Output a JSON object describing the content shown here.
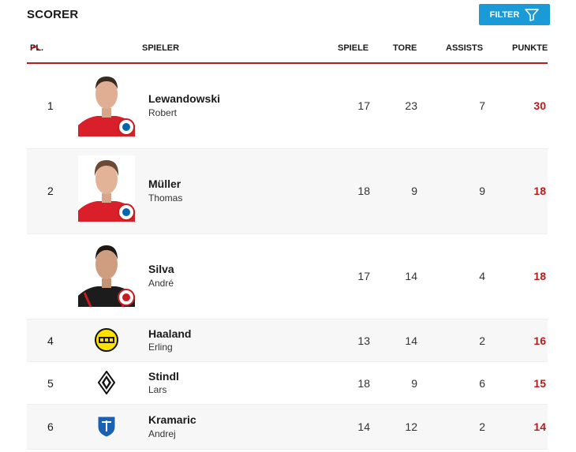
{
  "header": {
    "title": "SCORER",
    "filter_label": "FILTER"
  },
  "columns": {
    "pl": "PL.",
    "spieler": "SPIELER",
    "spiele": "SPIELE",
    "tore": "TORE",
    "assists": "ASSISTS",
    "punkte": "PUNKTE"
  },
  "rows": [
    {
      "pos": "1",
      "last": "Lewandowski",
      "first": "Robert",
      "spiele": "17",
      "tore": "23",
      "assists": "7",
      "punkte": "30"
    },
    {
      "pos": "2",
      "last": "Müller",
      "first": "Thomas",
      "spiele": "18",
      "tore": "9",
      "assists": "9",
      "punkte": "18"
    },
    {
      "pos": "",
      "last": "Silva",
      "first": "André",
      "spiele": "17",
      "tore": "14",
      "assists": "4",
      "punkte": "18"
    },
    {
      "pos": "4",
      "last": "Haaland",
      "first": "Erling",
      "spiele": "13",
      "tore": "14",
      "assists": "2",
      "punkte": "16"
    },
    {
      "pos": "5",
      "last": "Stindl",
      "first": "Lars",
      "spiele": "18",
      "tore": "9",
      "assists": "6",
      "punkte": "15"
    },
    {
      "pos": "6",
      "last": "Kramaric",
      "first": "Andrej",
      "spiele": "14",
      "tore": "12",
      "assists": "2",
      "punkte": "14"
    }
  ],
  "colors": {
    "accent": "#b71c1c",
    "filter_bg": "#1a9ad6"
  },
  "icons": {
    "sort": "chevron-up-icon",
    "filter": "funnel-icon"
  }
}
